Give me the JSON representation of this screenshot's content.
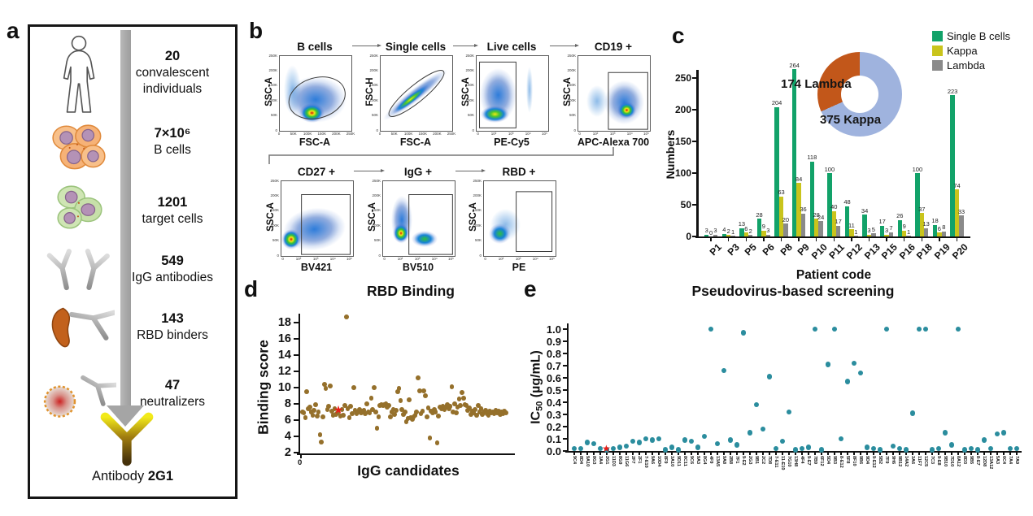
{
  "panels": {
    "a": {
      "label": "a",
      "steps": [
        {
          "icon": "person",
          "count": "20",
          "desc": "convalescent individuals"
        },
        {
          "icon": "cells-orange",
          "count": "7×10⁶",
          "desc": "B cells"
        },
        {
          "icon": "cells-green",
          "count": "1201",
          "desc": "target cells"
        },
        {
          "icon": "antibody-pair",
          "count": "549",
          "desc": "IgG antibodies"
        },
        {
          "icon": "rbd-antibody",
          "count": "143",
          "desc": "RBD binders"
        },
        {
          "icon": "virus-antibody",
          "count": "47",
          "desc": "neutralizers"
        }
      ],
      "footer_prefix": "Antibody",
      "footer_name": "2G1"
    },
    "b": {
      "label": "b",
      "lin_ticks": [
        "0",
        "50K",
        "100K",
        "150K",
        "200K",
        "250K"
      ],
      "log_ticks": [
        "0",
        "10²",
        "10³",
        "10⁴",
        "10⁵"
      ],
      "plots": [
        {
          "title": "B cells",
          "xlabel": "FSC-A",
          "ylabel": "SSC-A",
          "xscale": "lin"
        },
        {
          "title": "Single cells",
          "xlabel": "FSC-A",
          "ylabel": "FSC-H",
          "xscale": "lin"
        },
        {
          "title": "Live cells",
          "xlabel": "PE-Cy5",
          "ylabel": "SSC-A",
          "xscale": "log"
        },
        {
          "title": "CD19 +",
          "xlabel": "APC-Alexa 700",
          "ylabel": "SSC-A",
          "xscale": "log"
        },
        {
          "title": "CD27 +",
          "xlabel": "BV421",
          "ylabel": "SSC-A",
          "xscale": "log"
        },
        {
          "title": "IgG +",
          "xlabel": "BV510",
          "ylabel": "SSC-A",
          "xscale": "log"
        },
        {
          "title": "RBD +",
          "xlabel": "PE",
          "ylabel": "SSC-A",
          "xscale": "log"
        }
      ]
    },
    "c": {
      "label": "c"
    },
    "d": {
      "label": "d"
    },
    "e": {
      "label": "e"
    }
  },
  "chart_data": [
    {
      "id": "c-bars",
      "type": "bar",
      "title": "",
      "ylabel": "Numbers",
      "xlabel": "Patient code",
      "yticks": [
        0,
        50,
        100,
        150,
        200,
        250
      ],
      "ylim": [
        0,
        290
      ],
      "legend_position": "top-right",
      "categories": [
        "P1",
        "P3",
        "P5",
        "P6",
        "P8",
        "P9",
        "P10",
        "P11",
        "P12",
        "P13",
        "P15",
        "P16",
        "P18",
        "P19",
        "P20"
      ],
      "series": [
        {
          "name": "Single B cells",
          "color": "#12a269",
          "values": [
            3,
            4,
            13,
            28,
            204,
            264,
            118,
            100,
            48,
            34,
            17,
            26,
            100,
            18,
            223
          ]
        },
        {
          "name": "Kappa",
          "color": "#c9c41c",
          "values": [
            0,
            2,
            6,
            9,
            63,
            84,
            28,
            40,
            11,
            3,
            3,
            9,
            37,
            6,
            74
          ]
        },
        {
          "name": "Lambda",
          "color": "#8a8a8a",
          "values": [
            3,
            1,
            2,
            3,
            20,
            36,
            24,
            17,
            1,
            5,
            7,
            1,
            13,
            8,
            33
          ]
        }
      ]
    },
    {
      "id": "c-donut",
      "type": "pie",
      "slices": [
        {
          "label": "375 Kappa",
          "value": 375,
          "color": "#9fb3de"
        },
        {
          "label": "174 Lambda",
          "value": 174,
          "color": "#c2571a"
        }
      ]
    },
    {
      "id": "d-scatter",
      "type": "scatter",
      "title": "RBD Binding",
      "ylabel": "Binding score",
      "xlabel": "IgG candidates",
      "xtick0": "0",
      "yticks": [
        2,
        4,
        6,
        8,
        10,
        12,
        14,
        16,
        18
      ],
      "ylim": [
        2,
        19
      ],
      "dot_color": "#95702b",
      "star_color": "#ea1d17",
      "star_point": [
        26,
        7.1
      ],
      "points": [
        [
          1,
          7.0
        ],
        [
          2,
          6.9
        ],
        [
          3,
          6.3
        ],
        [
          4,
          9.5
        ],
        [
          5,
          7.4
        ],
        [
          6,
          7.6
        ],
        [
          7,
          7.0
        ],
        [
          8,
          6.6
        ],
        [
          9,
          7.2
        ],
        [
          10,
          7.9
        ],
        [
          11,
          6.5
        ],
        [
          12,
          7.0
        ],
        [
          13,
          4.2
        ],
        [
          14,
          3.3
        ],
        [
          15,
          6.4
        ],
        [
          16,
          10.4
        ],
        [
          17,
          9.9
        ],
        [
          18,
          7.3
        ],
        [
          19,
          7.7
        ],
        [
          20,
          10.2
        ],
        [
          21,
          7.1
        ],
        [
          22,
          6.6
        ],
        [
          23,
          7.4
        ],
        [
          24,
          6.7
        ],
        [
          25,
          6.9
        ],
        [
          27,
          6.5
        ],
        [
          28,
          7.3
        ],
        [
          29,
          6.6
        ],
        [
          30,
          7.8
        ],
        [
          31,
          18.7
        ],
        [
          32,
          7.4
        ],
        [
          33,
          6.3
        ],
        [
          34,
          7.7
        ],
        [
          35,
          6.8
        ],
        [
          36,
          10.0
        ],
        [
          37,
          7.2
        ],
        [
          38,
          6.8
        ],
        [
          39,
          7.0
        ],
        [
          40,
          7.3
        ],
        [
          41,
          6.9
        ],
        [
          42,
          7.1
        ],
        [
          43,
          7.2
        ],
        [
          44,
          6.8
        ],
        [
          45,
          8.0
        ],
        [
          46,
          7.0
        ],
        [
          47,
          6.9
        ],
        [
          48,
          8.7
        ],
        [
          49,
          7.3
        ],
        [
          50,
          10.0
        ],
        [
          51,
          7.0
        ],
        [
          52,
          5.0
        ],
        [
          53,
          6.4
        ],
        [
          54,
          7.8
        ],
        [
          55,
          7.9
        ],
        [
          56,
          7.8
        ],
        [
          57,
          7.9
        ],
        [
          58,
          8.0
        ],
        [
          59,
          7.6
        ],
        [
          60,
          7.8
        ],
        [
          61,
          6.4
        ],
        [
          62,
          7.0
        ],
        [
          63,
          7.3
        ],
        [
          64,
          6.7
        ],
        [
          65,
          7.2
        ],
        [
          66,
          9.5
        ],
        [
          67,
          9.9
        ],
        [
          68,
          8.4
        ],
        [
          69,
          7.3
        ],
        [
          70,
          6.7
        ],
        [
          71,
          7.0
        ],
        [
          72,
          5.8
        ],
        [
          73,
          6.2
        ],
        [
          74,
          8.5
        ],
        [
          75,
          6.3
        ],
        [
          76,
          6.1
        ],
        [
          77,
          6.4
        ],
        [
          78,
          6.6
        ],
        [
          79,
          7.0
        ],
        [
          80,
          11.2
        ],
        [
          81,
          9.6
        ],
        [
          82,
          6.8
        ],
        [
          83,
          7.1
        ],
        [
          84,
          9.6
        ],
        [
          85,
          9.0
        ],
        [
          86,
          6.4
        ],
        [
          87,
          7.5
        ],
        [
          88,
          3.8
        ],
        [
          89,
          7.1
        ],
        [
          90,
          6.9
        ],
        [
          91,
          7.3
        ],
        [
          92,
          7.0
        ],
        [
          93,
          3.2
        ],
        [
          94,
          6.5
        ],
        [
          95,
          7.6
        ],
        [
          96,
          7.4
        ],
        [
          97,
          7.7
        ],
        [
          98,
          7.3
        ],
        [
          99,
          7.6
        ],
        [
          100,
          7.9
        ],
        [
          101,
          7.4
        ],
        [
          102,
          7.7
        ],
        [
          103,
          10.1
        ],
        [
          104,
          7.0
        ],
        [
          105,
          8.0
        ],
        [
          106,
          6.9
        ],
        [
          107,
          7.6
        ],
        [
          108,
          8.6
        ],
        [
          109,
          7.8
        ],
        [
          110,
          9.4
        ],
        [
          111,
          8.7
        ],
        [
          112,
          7.9
        ],
        [
          113,
          7.8
        ],
        [
          114,
          7.2
        ],
        [
          115,
          7.5
        ],
        [
          116,
          6.7
        ],
        [
          117,
          7.1
        ],
        [
          118,
          6.9
        ],
        [
          119,
          7.3
        ],
        [
          120,
          6.6
        ],
        [
          121,
          7.8
        ],
        [
          122,
          7.0
        ],
        [
          123,
          7.4
        ],
        [
          124,
          6.7
        ],
        [
          125,
          7.0
        ],
        [
          126,
          7.2
        ],
        [
          127,
          6.8
        ],
        [
          128,
          6.6
        ],
        [
          129,
          7.1
        ],
        [
          130,
          6.9
        ],
        [
          131,
          7.0
        ],
        [
          132,
          6.8
        ],
        [
          133,
          7.2
        ],
        [
          134,
          6.9
        ],
        [
          135,
          7.1
        ],
        [
          136,
          6.7
        ],
        [
          137,
          7.0
        ],
        [
          138,
          6.8
        ],
        [
          139,
          7.1
        ],
        [
          140,
          6.9
        ]
      ]
    },
    {
      "id": "e-scatter",
      "type": "scatter",
      "title": "Pseudovirus-based screening",
      "ylabel_prefix": "IC",
      "ylabel_sub": "50",
      "ylabel_suffix": " (µg/mL)",
      "yticks": [
        "0.0",
        "0.1",
        "0.2",
        "0.3",
        "0.4",
        "0.5",
        "0.6",
        "0.7",
        "0.8",
        "0.9",
        "1.0"
      ],
      "ylim": [
        0,
        1.0
      ],
      "dot_color": "#2b8d9e",
      "star_color": "#ea1d17",
      "star_index": 5,
      "categories": [
        "9C4",
        "8D4",
        "9A10",
        "8G3",
        "3A4",
        "2G1",
        "11D3",
        "8G9",
        "11G6",
        "2F7",
        "2F1",
        "7-E10",
        "9A6",
        "10D4",
        "8F9",
        "3A10",
        "9D11",
        "8C11",
        "9C6",
        "9A3",
        "8G4",
        "4F9",
        "13A5",
        "9A8",
        "2B8",
        "7F1",
        "9-E2",
        "2G3",
        "9B1",
        "2C2",
        "7D8",
        "7-E11",
        "11-E10",
        "7G10",
        "13H8",
        "4F4",
        "9-E7",
        "7B9",
        "6F12",
        "5D4",
        "9B3",
        "8-E12",
        "5F8",
        "8F10",
        "9B6",
        "9D4",
        "9-E12",
        "5B2",
        "7F9",
        "9H6",
        "9B12",
        "14A2",
        "3A6",
        "11F7",
        "12C5",
        "7C3",
        "9-E8",
        "9B10",
        "7D10",
        "8A12",
        "8D3",
        "9B5",
        "8-E7",
        "12D8",
        "13A12",
        "5A3",
        "6C4",
        "7A4",
        "7A9"
      ],
      "values": [
        0.02,
        0.02,
        0.07,
        0.06,
        0.02,
        0.01,
        0.02,
        0.03,
        0.04,
        0.08,
        0.07,
        0.1,
        0.09,
        0.1,
        0.01,
        0.03,
        0.01,
        0.09,
        0.08,
        0.03,
        0.12,
        1.0,
        0.06,
        0.66,
        0.09,
        0.05,
        0.97,
        0.15,
        0.38,
        0.18,
        0.61,
        0.02,
        0.08,
        0.32,
        0.01,
        0.02,
        0.03,
        1.0,
        0.01,
        0.71,
        1.0,
        0.1,
        0.57,
        0.72,
        0.64,
        0.03,
        0.02,
        0.01,
        1.0,
        0.04,
        0.02,
        0.01,
        0.31,
        1.0,
        1.0,
        0.01,
        0.02,
        0.15,
        0.05,
        1.0,
        0.01,
        0.02,
        0.01,
        0.09,
        0.02,
        0.14,
        0.15,
        0.02,
        0.02
      ]
    }
  ]
}
